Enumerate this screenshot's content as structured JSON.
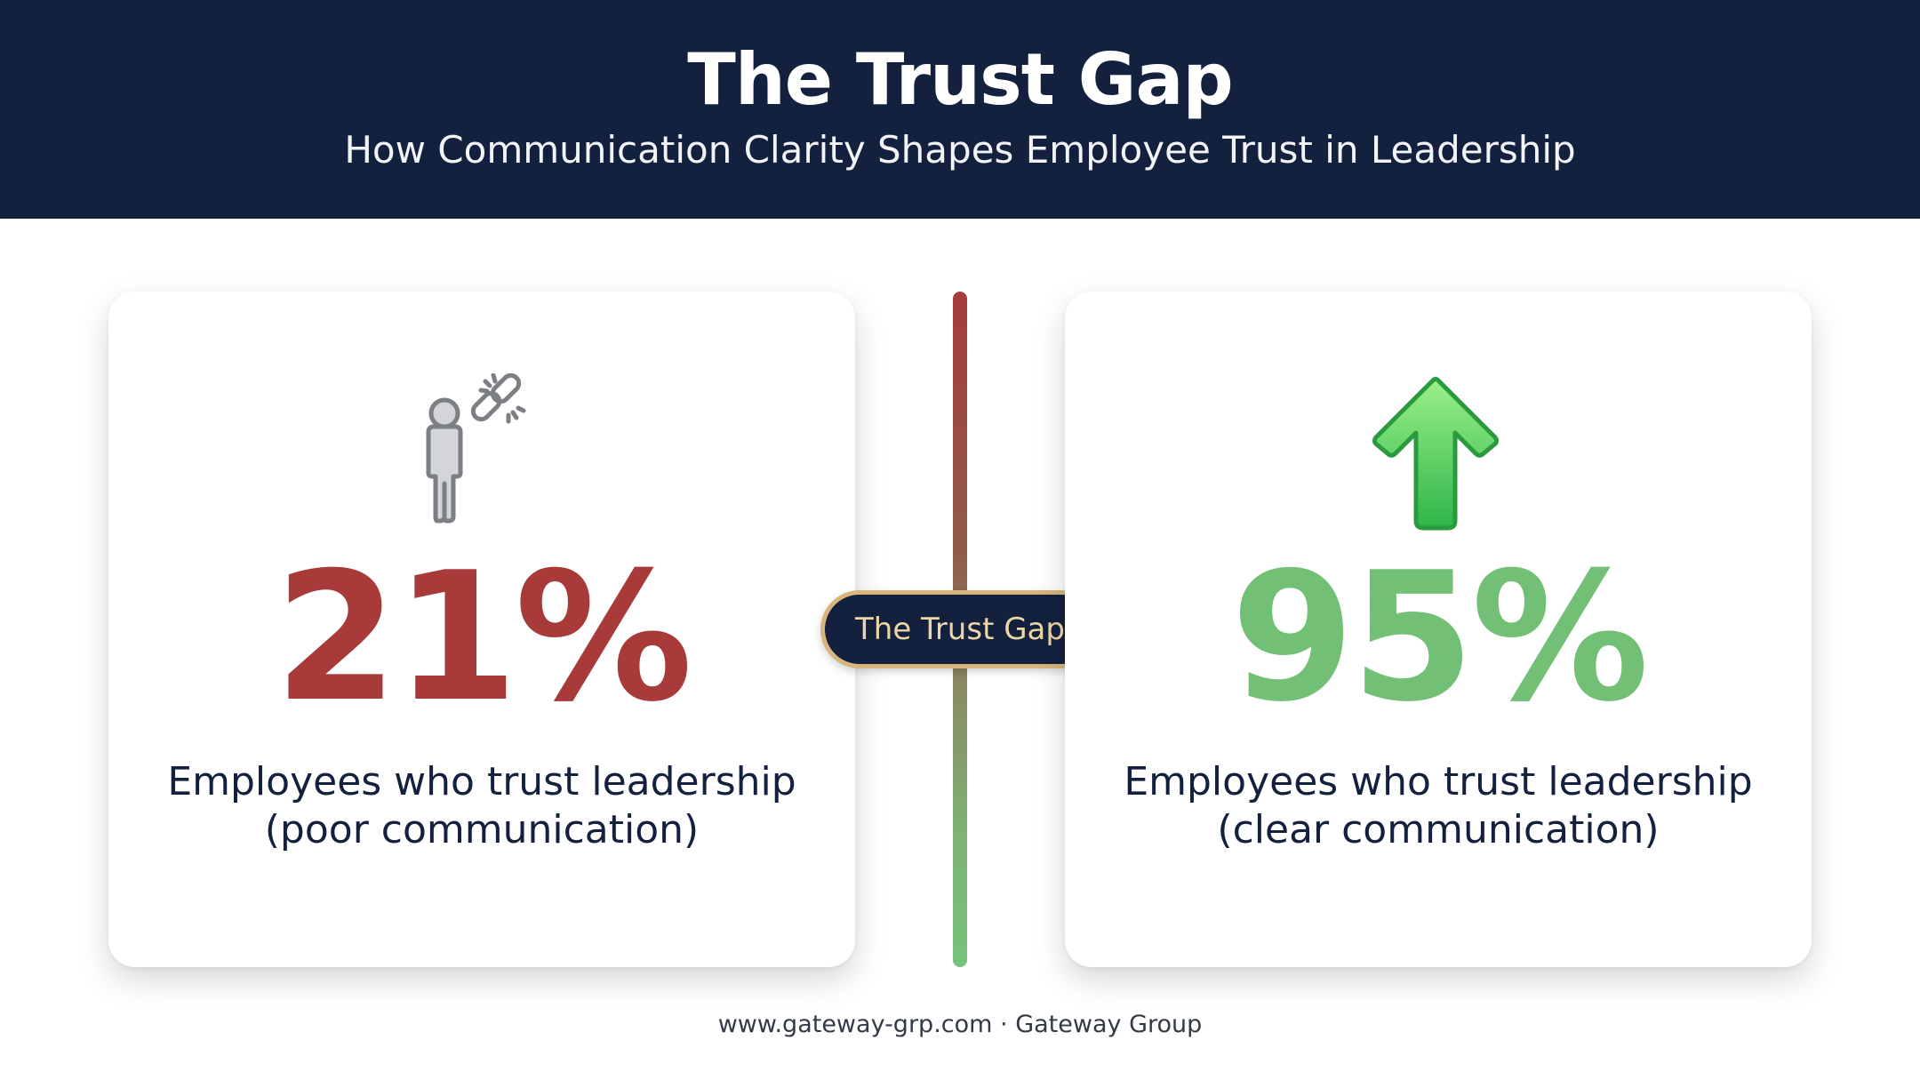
{
  "header": {
    "title": "The Trust Gap",
    "subtitle": "How Communication Clarity Shapes Employee Trust in Leadership"
  },
  "left_card": {
    "icon": "person-broken-link-icon",
    "percentage": "21%",
    "description_line1": "Employees who trust leadership",
    "description_line2": "(poor communication)",
    "color": "#a83a3a"
  },
  "right_card": {
    "icon": "up-arrow-icon",
    "percentage": "95%",
    "description_line1": "Employees who trust leadership",
    "description_line2": "(clear communication)",
    "color": "#72c075"
  },
  "divider": {
    "label": "The Trust Gap",
    "top_color": "#a63c3c",
    "bottom_color": "#76c37a",
    "badge_color": "#13213f",
    "badge_border_color": "#d7b57c"
  },
  "footer": {
    "website": "www.gateway-grp.com",
    "separator": "·",
    "company": "Gateway Group"
  },
  "colors": {
    "header_background": "#13213f",
    "text_dark": "#13213f"
  }
}
